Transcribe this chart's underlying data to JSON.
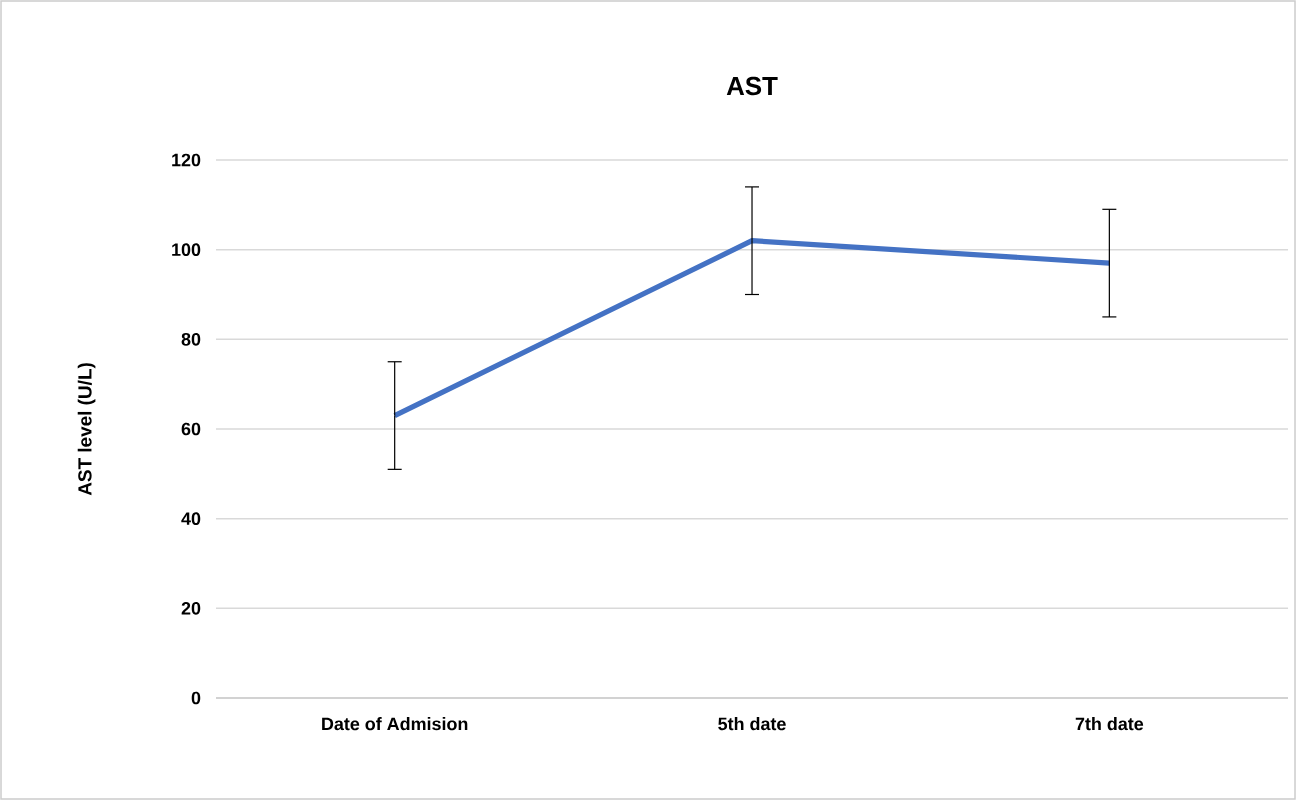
{
  "chart_data": {
    "type": "line",
    "title": "AST",
    "ylabel": "AST level (U/L)",
    "categories": [
      "Date of Admision",
      "5th date",
      "7th date"
    ],
    "values": [
      63,
      102,
      97
    ],
    "errors": [
      12,
      12,
      12
    ],
    "color": "#4472c4",
    "ylim": [
      0,
      120
    ],
    "yticks": [
      0,
      20,
      40,
      60,
      80,
      100,
      120
    ],
    "grid": "y",
    "marker": "none",
    "line_style": "solid"
  }
}
